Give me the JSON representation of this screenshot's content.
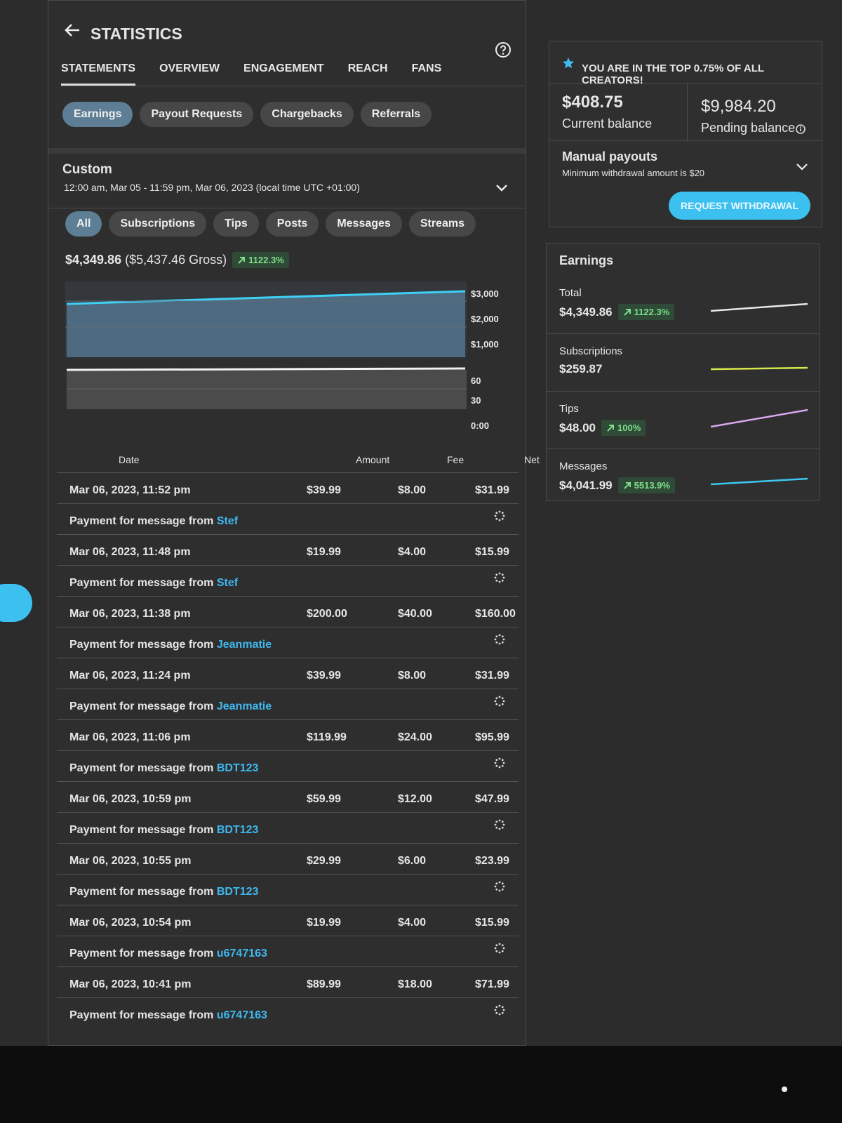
{
  "header": {
    "title": "STATISTICS"
  },
  "tabs": [
    "STATEMENTS",
    "OVERVIEW",
    "ENGAGEMENT",
    "REACH",
    "FANS"
  ],
  "subtabs": [
    "Earnings",
    "Payout Requests",
    "Chargebacks",
    "Referrals"
  ],
  "period": {
    "label": "Custom",
    "range": "12:00 am, Mar 05 - 11:59 pm, Mar 06, 2023 (local time UTC +01:00)"
  },
  "filters": [
    "All",
    "Subscriptions",
    "Tips",
    "Posts",
    "Messages",
    "Streams"
  ],
  "summary": {
    "net": "$4,349.86",
    "gross": "($5,437.46 Gross)",
    "change": "1122.3%"
  },
  "chart": {
    "upper_axis": [
      "$3,000",
      "$2,000",
      "$1,000"
    ],
    "lower_axis": [
      "60",
      "30",
      "0:00"
    ]
  },
  "table": {
    "columns": [
      "Date",
      "Amount",
      "Fee",
      "Net"
    ],
    "rows": [
      {
        "date": "Mar 06, 2023, 11:52 pm",
        "amount": "$39.99",
        "fee": "$8.00",
        "net": "$31.99",
        "description": "Payment for message from",
        "user": "Stef"
      },
      {
        "date": "Mar 06, 2023, 11:48 pm",
        "amount": "$19.99",
        "fee": "$4.00",
        "net": "$15.99",
        "description": "Payment for message from",
        "user": "Stef"
      },
      {
        "date": "Mar 06, 2023, 11:38 pm",
        "amount": "$200.00",
        "fee": "$40.00",
        "net": "$160.00",
        "description": "Payment for message from",
        "user": "Jeanmatie"
      },
      {
        "date": "Mar 06, 2023, 11:24 pm",
        "amount": "$39.99",
        "fee": "$8.00",
        "net": "$31.99",
        "description": "Payment for message from",
        "user": "Jeanmatie"
      },
      {
        "date": "Mar 06, 2023, 11:06 pm",
        "amount": "$119.99",
        "fee": "$24.00",
        "net": "$95.99",
        "description": "Payment for message from",
        "user": "BDT123"
      },
      {
        "date": "Mar 06, 2023, 10:59 pm",
        "amount": "$59.99",
        "fee": "$12.00",
        "net": "$47.99",
        "description": "Payment for message from",
        "user": "BDT123"
      },
      {
        "date": "Mar 06, 2023, 10:55 pm",
        "amount": "$29.99",
        "fee": "$6.00",
        "net": "$23.99",
        "description": "Payment for message from",
        "user": "BDT123"
      },
      {
        "date": "Mar 06, 2023, 10:54 pm",
        "amount": "$19.99",
        "fee": "$4.00",
        "net": "$15.99",
        "description": "Payment for message from",
        "user": "u6747163"
      },
      {
        "date": "Mar 06, 2023, 10:41 pm",
        "amount": "$89.99",
        "fee": "$18.00",
        "net": "$71.99",
        "description": "Payment for message from",
        "user": "u6747163"
      }
    ]
  },
  "sidebar": {
    "banner": "YOU ARE IN THE TOP 0.75% OF ALL CREATORS!",
    "current_balance": {
      "value": "$408.75",
      "label": "Current balance"
    },
    "pending_balance": {
      "value": "$9,984.20",
      "label": "Pending balance"
    },
    "payouts": {
      "title": "Manual payouts",
      "note": "Minimum withdrawal amount is $20",
      "button": "REQUEST WITHDRAWAL"
    },
    "earnings": {
      "title": "Earnings",
      "items": [
        {
          "label": "Total",
          "value": "$4,349.86",
          "change": "1122.3%",
          "color": "#e8e8e8"
        },
        {
          "label": "Subscriptions",
          "value": "$259.87",
          "color": "#d7e84a"
        },
        {
          "label": "Tips",
          "value": "$48.00",
          "change": "100%",
          "color": "#d9a8f0"
        },
        {
          "label": "Messages",
          "value": "$4,041.99",
          "change": "5513.9%",
          "color": "#3cc8f0"
        }
      ]
    }
  }
}
